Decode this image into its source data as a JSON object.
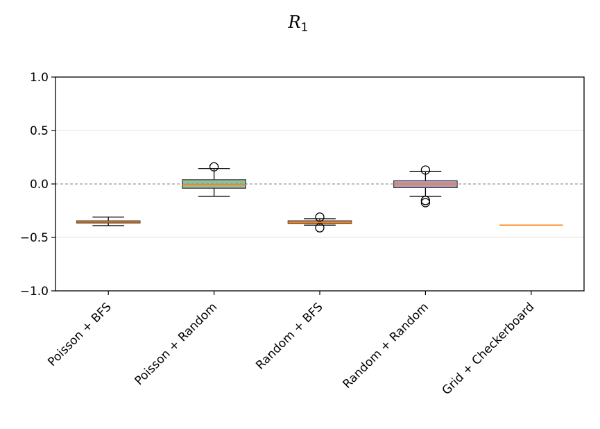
{
  "chart_data": {
    "type": "box",
    "title": "R",
    "title_subscript": "1",
    "xlabel": "",
    "ylabel": "",
    "ylim": [
      -1.0,
      1.0
    ],
    "yticks": [
      1.0,
      0.5,
      0.0,
      -0.5,
      -1.0
    ],
    "ytick_labels": [
      "1.0",
      "0.5",
      "0.0",
      "−0.5",
      "−1.0"
    ],
    "grid": "horizontal at ±0.5",
    "reference_line": 0.0,
    "categories": [
      "Poisson + BFS",
      "Poisson + Random",
      "Random + BFS",
      "Random + Random",
      "Grid + Checkerboard"
    ],
    "boxes": [
      {
        "category": "Poisson + BFS",
        "whisker_low": -0.39,
        "q1": -0.365,
        "median": -0.355,
        "q3": -0.345,
        "whisker_high": -0.31,
        "outliers": [],
        "color": "#d95f02"
      },
      {
        "category": "Poisson + Random",
        "whisker_low": -0.115,
        "q1": -0.04,
        "median": -0.005,
        "q3": 0.04,
        "whisker_high": 0.145,
        "outliers": [
          0.16
        ],
        "color": "#66a06f"
      },
      {
        "category": "Random + BFS",
        "whisker_low": -0.385,
        "q1": -0.37,
        "median": -0.36,
        "q3": -0.345,
        "whisker_high": -0.325,
        "outliers": [
          -0.31,
          -0.41
        ],
        "color": "#d95f02"
      },
      {
        "category": "Random + Random",
        "whisker_low": -0.115,
        "q1": -0.035,
        "median": 0.0,
        "q3": 0.03,
        "whisker_high": 0.115,
        "outliers": [
          0.13,
          -0.155,
          -0.175
        ],
        "color": "#8d6ea8"
      },
      {
        "category": "Grid + Checkerboard",
        "whisker_low": -0.385,
        "q1": -0.385,
        "median": -0.385,
        "q3": -0.385,
        "whisker_high": -0.385,
        "outliers": [],
        "color": "#ff7f0e"
      }
    ],
    "median_color": "#ff7f0e"
  }
}
